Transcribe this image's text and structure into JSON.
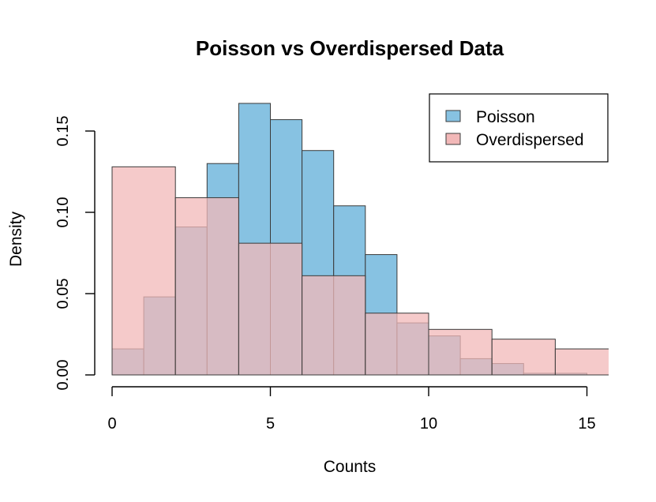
{
  "chart_data": {
    "type": "bar",
    "title": "Poisson vs Overdispersed Data",
    "xlabel": "Counts",
    "ylabel": "Density",
    "xlim": [
      0,
      15.6
    ],
    "ylim": [
      0,
      0.172
    ],
    "x_ticks": [
      0,
      5,
      10,
      15
    ],
    "y_ticks": [
      0.0,
      0.05,
      0.1,
      0.15
    ],
    "y_tick_labels": [
      "0.00",
      "0.05",
      "0.10",
      "0.15"
    ],
    "grid": false,
    "legend_position": "top-right",
    "series": [
      {
        "name": "Poisson",
        "color": "#87c2e2",
        "bins": [
          {
            "x0": 0,
            "x1": 1,
            "density": 0.016
          },
          {
            "x0": 1,
            "x1": 2,
            "density": 0.048
          },
          {
            "x0": 2,
            "x1": 3,
            "density": 0.091
          },
          {
            "x0": 3,
            "x1": 4,
            "density": 0.13
          },
          {
            "x0": 4,
            "x1": 5,
            "density": 0.167
          },
          {
            "x0": 5,
            "x1": 6,
            "density": 0.157
          },
          {
            "x0": 6,
            "x1": 7,
            "density": 0.138
          },
          {
            "x0": 7,
            "x1": 8,
            "density": 0.104
          },
          {
            "x0": 8,
            "x1": 9,
            "density": 0.074
          },
          {
            "x0": 9,
            "x1": 10,
            "density": 0.032
          },
          {
            "x0": 10,
            "x1": 11,
            "density": 0.024
          },
          {
            "x0": 11,
            "x1": 12,
            "density": 0.01
          },
          {
            "x0": 12,
            "x1": 13,
            "density": 0.007
          },
          {
            "x0": 13,
            "x1": 14,
            "density": 0.001
          },
          {
            "x0": 14,
            "x1": 15,
            "density": 0.001
          }
        ]
      },
      {
        "name": "Overdispersed",
        "color": "#f2b8b8",
        "bins": [
          {
            "x0": 0,
            "x1": 2,
            "density": 0.128
          },
          {
            "x0": 2,
            "x1": 4,
            "density": 0.109
          },
          {
            "x0": 4,
            "x1": 6,
            "density": 0.081
          },
          {
            "x0": 6,
            "x1": 8,
            "density": 0.061
          },
          {
            "x0": 8,
            "x1": 10,
            "density": 0.038
          },
          {
            "x0": 10,
            "x1": 12,
            "density": 0.028
          },
          {
            "x0": 12,
            "x1": 14,
            "density": 0.022
          },
          {
            "x0": 14,
            "x1": 16,
            "density": 0.016
          }
        ]
      }
    ]
  }
}
